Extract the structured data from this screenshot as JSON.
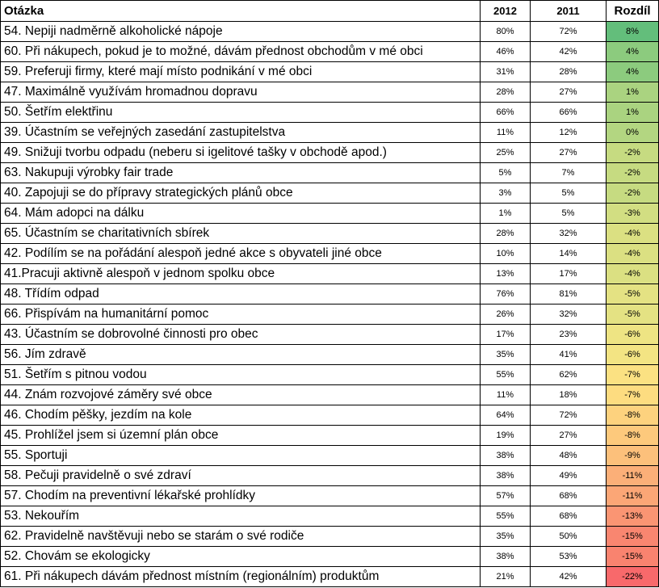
{
  "table": {
    "headers": {
      "question": "Otázka",
      "y2012": "2012",
      "y2011": "2011",
      "diff": "Rozdíl"
    },
    "rows": [
      {
        "question": "54. Nepiji nadměrně alkoholické nápoje",
        "y2012": "80%",
        "y2011": "72%",
        "diff": "8%",
        "color": "#63be7b"
      },
      {
        "question": "60. Při nákupech, pokud je to možné, dávám přednost obchodům v mé obci",
        "y2012": "46%",
        "y2011": "42%",
        "diff": "4%",
        "color": "#8ccb7e"
      },
      {
        "question": "59. Preferuji firmy, které mají místo podnikání v mé obci",
        "y2012": "31%",
        "y2011": "28%",
        "diff": "4%",
        "color": "#8ccb7e"
      },
      {
        "question": "47. Maximálně využívám hromadnou dopravu",
        "y2012": "28%",
        "y2011": "27%",
        "diff": "1%",
        "color": "#aad380"
      },
      {
        "question": "50. Šetřím elektřinu",
        "y2012": "66%",
        "y2011": "66%",
        "diff": "1%",
        "color": "#aad380"
      },
      {
        "question": "39. Účastním se veřejných zasedání zastupitelstva",
        "y2012": "11%",
        "y2011": "12%",
        "diff": "0%",
        "color": "#b3d681"
      },
      {
        "question": "49. Snižuji tvorbu odpadu (neberu si igelitové tašky v obchodě apod.)",
        "y2012": "25%",
        "y2011": "27%",
        "diff": "-2%",
        "color": "#c6db81"
      },
      {
        "question": "63. Nakupuji výrobky fair trade",
        "y2012": "5%",
        "y2011": "7%",
        "diff": "-2%",
        "color": "#c6db81"
      },
      {
        "question": "40. Zapojuji se do přípravy strategických plánů obce",
        "y2012": "3%",
        "y2011": "5%",
        "diff": "-2%",
        "color": "#c6db81"
      },
      {
        "question": "64. Mám adopci na dálku",
        "y2012": "1%",
        "y2011": "5%",
        "diff": "-3%",
        "color": "#d2de82"
      },
      {
        "question": "65. Účastním se charitativních sbírek",
        "y2012": "28%",
        "y2011": "32%",
        "diff": "-4%",
        "color": "#dbe082"
      },
      {
        "question": "42. Podílím se na pořádání alespoň jedné akce s obyvateli jiné obce",
        "y2012": "10%",
        "y2011": "14%",
        "diff": "-4%",
        "color": "#dbe082"
      },
      {
        "question": "41.Pracuji aktivně alespoň v jednom spolku obce",
        "y2012": "13%",
        "y2011": "17%",
        "diff": "-4%",
        "color": "#dbe082"
      },
      {
        "question": "48. Třídím odpad",
        "y2012": "76%",
        "y2011": "81%",
        "diff": "-5%",
        "color": "#e4e283"
      },
      {
        "question": "66. Přispívám na humanitární pomoc",
        "y2012": "26%",
        "y2011": "32%",
        "diff": "-5%",
        "color": "#e4e283"
      },
      {
        "question": "43. Účastním se dobrovolné činnosti pro obec",
        "y2012": "17%",
        "y2011": "23%",
        "diff": "-6%",
        "color": "#eee483"
      },
      {
        "question": "56. Jím zdravě",
        "y2012": "35%",
        "y2011": "41%",
        "diff": "-6%",
        "color": "#f3e483"
      },
      {
        "question": "51. Šetřím s pitnou vodou",
        "y2012": "55%",
        "y2011": "62%",
        "diff": "-7%",
        "color": "#fbe182"
      },
      {
        "question": "44. Znám rozvojové záměry své obce",
        "y2012": "11%",
        "y2011": "18%",
        "diff": "-7%",
        "color": "#fddc80"
      },
      {
        "question": "46. Chodím pěšky, jezdím na kole",
        "y2012": "64%",
        "y2011": "72%",
        "diff": "-8%",
        "color": "#fdd27e"
      },
      {
        "question": "45. Prohlížel jsem si územní plán obce",
        "y2012": "19%",
        "y2011": "27%",
        "diff": "-8%",
        "color": "#fdc97c"
      },
      {
        "question": "55. Sportuji",
        "y2012": "38%",
        "y2011": "48%",
        "diff": "-9%",
        "color": "#fcc07b"
      },
      {
        "question": "58. Pečuji pravidelně o své zdraví",
        "y2012": "38%",
        "y2011": "49%",
        "diff": "-11%",
        "color": "#fbaf78"
      },
      {
        "question": "57. Chodím na preventivní lékařské prohlídky",
        "y2012": "57%",
        "y2011": "68%",
        "diff": "-11%",
        "color": "#fba676"
      },
      {
        "question": "53. Nekouřím",
        "y2012": "55%",
        "y2011": "68%",
        "diff": "-13%",
        "color": "#fa9573"
      },
      {
        "question": "62. Pravidelně navštěvuji nebo se starám o své rodiče",
        "y2012": "35%",
        "y2011": "50%",
        "diff": "-15%",
        "color": "#f98670"
      },
      {
        "question": "52. Chovám se ekologicky",
        "y2012": "38%",
        "y2011": "53%",
        "diff": "-15%",
        "color": "#f9836f"
      },
      {
        "question": "61. Při nákupech dávám přednost místním (regionálním) produktům",
        "y2012": "21%",
        "y2011": "42%",
        "diff": "-22%",
        "color": "#f8696b"
      }
    ]
  }
}
